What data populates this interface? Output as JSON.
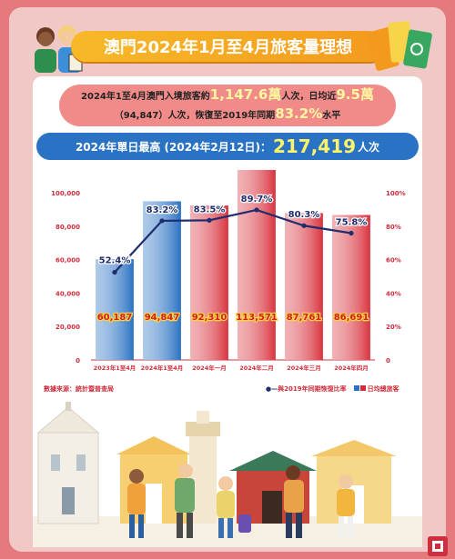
{
  "title": "澳門2024年1月至4月旅客量理想",
  "summary": {
    "line1_prefix": "2024年1至4月澳門入境旅客約",
    "line1_value": "1,147.6萬",
    "line1_mid": "人次，日均近",
    "line1_value2": "9.5萬",
    "line2_prefix": "（94,847）人次，恢復至2019年同期",
    "line2_value": "83.2%",
    "line2_suffix": "水平"
  },
  "peak": {
    "prefix": "2024年單日最高 (2024年2月12日)：",
    "value": "217,419",
    "suffix": "人次"
  },
  "source": "數據來源：統計暨普查局",
  "legend": {
    "line_label": "與2019年同期恢復比率",
    "bar_label": "日均總旅客"
  },
  "colors": {
    "red_bar": "#d9343f",
    "blue_bar": "#2a72c3",
    "line": "#1f2c6e",
    "value_label": "#d31f1f",
    "value_label_bg": "#fbd245"
  },
  "chart_data": {
    "type": "bar",
    "categories": [
      "2023年1至4月",
      "2024年1至4月",
      "2024年一月",
      "2024年二月",
      "2024年三月",
      "2024年四月"
    ],
    "series": [
      {
        "name": "日均總旅客",
        "type": "bar",
        "axis": "left",
        "values": [
          60187,
          94847,
          92310,
          113571,
          87761,
          86691
        ],
        "value_labels": [
          "60,187",
          "94,847",
          "92,310",
          "113,571",
          "87,761",
          "86,691"
        ],
        "bar_colors": [
          "blue",
          "blue",
          "red",
          "red",
          "red",
          "red"
        ]
      },
      {
        "name": "與2019年同期恢復比率",
        "type": "line",
        "axis": "right",
        "values": [
          52.4,
          83.2,
          83.5,
          89.7,
          80.3,
          75.8
        ],
        "value_labels": [
          "52.4%",
          "83.2%",
          "83.5%",
          "89.7%",
          "80.3%",
          "75.8%"
        ]
      }
    ],
    "ylim_left": [
      0,
      100000
    ],
    "yticks_left": [
      "0",
      "20,000",
      "40,000",
      "60,000",
      "80,000",
      "100,000"
    ],
    "ylim_right": [
      0,
      100
    ],
    "yticks_right": [
      "0",
      "20%",
      "40%",
      "60%",
      "80%",
      "100%"
    ],
    "grid": false,
    "legend_position": "bottom-right"
  }
}
